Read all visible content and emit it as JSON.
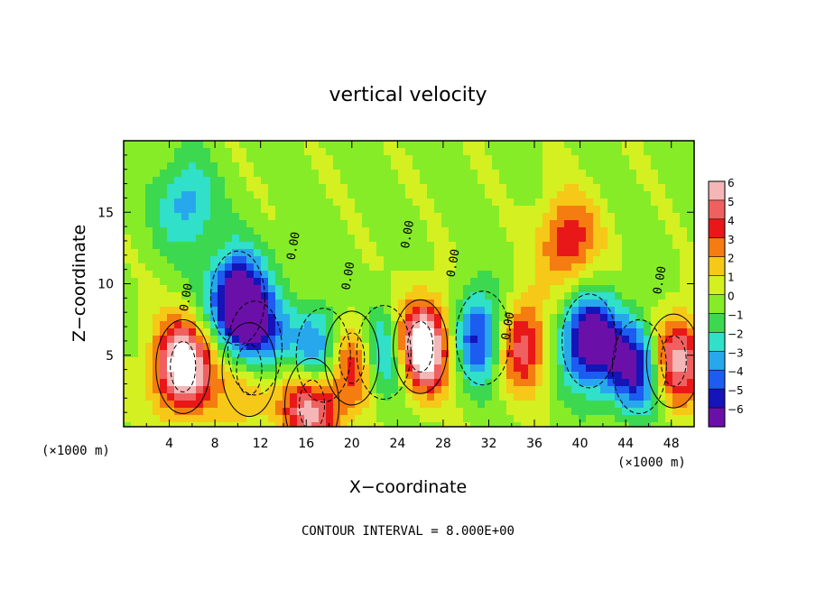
{
  "chart_data": {
    "type": "heatmap",
    "title": "vertical velocity",
    "xlabel": "X−coordinate",
    "ylabel": "Z−coordinate",
    "x_unit_left": "(×1000 m)",
    "x_unit_right": "(×1000 m)",
    "xlim": [
      0,
      50
    ],
    "ylim": [
      0,
      20
    ],
    "x_ticks": [
      4,
      8,
      12,
      16,
      20,
      24,
      28,
      32,
      36,
      40,
      44,
      48
    ],
    "y_ticks": [
      5,
      10,
      15
    ],
    "colorbar": {
      "ticks": [
        6,
        5,
        4,
        3,
        2,
        1,
        0,
        -1,
        -2,
        -3,
        -4,
        -5,
        -6
      ],
      "tick_labels": [
        "6",
        "5",
        "4",
        "3",
        "2",
        "1",
        "0",
        "−1",
        "−2",
        "−3",
        "−4",
        "−5",
        "−6"
      ],
      "colors": [
        "#f4b6b6",
        "#f06060",
        "#e81818",
        "#f57c10",
        "#f6c818",
        "#d4f020",
        "#86ec28",
        "#3cd850",
        "#30e0c8",
        "#28a8ec",
        "#1c5cf0",
        "#1414b8",
        "#6a10a8"
      ]
    },
    "contour_labels": [
      "0.00",
      "0.00",
      "0.00",
      "0.00",
      "0.00",
      "0.00",
      "0.00"
    ],
    "features": [
      {
        "x": 5.2,
        "z": 4.2,
        "w": 4.8
      },
      {
        "x": 11.0,
        "z": 4.0,
        "w": 4.2
      },
      {
        "x": 20.0,
        "z": 4.8,
        "w": 4.5
      },
      {
        "x": 26.0,
        "z": 5.6,
        "w": 5.8
      },
      {
        "x": 34.5,
        "z": 5.8,
        "w": 3.8
      },
      {
        "x": 48.2,
        "z": 4.6,
        "w": 4.4
      },
      {
        "x": 10.0,
        "z": 9.0,
        "w": -4.6
      },
      {
        "x": 11.5,
        "z": 5.5,
        "w": -5.4
      },
      {
        "x": 17.5,
        "z": 5.0,
        "w": -4.2
      },
      {
        "x": 22.8,
        "z": 5.2,
        "w": -4.0
      },
      {
        "x": 31.5,
        "z": 6.2,
        "w": -4.0
      },
      {
        "x": 40.8,
        "z": 6.0,
        "w": -4.6
      },
      {
        "x": 45.2,
        "z": 4.2,
        "w": -4.4
      },
      {
        "x": 5.5,
        "z": 15.5,
        "w": -2.1
      },
      {
        "x": 39.0,
        "z": 13.0,
        "w": 2.6
      },
      {
        "x": 16.5,
        "z": 1.5,
        "w": 4.2
      }
    ]
  },
  "footer": {
    "contour_interval": "CONTOUR INTERVAL = 8.000E+00"
  }
}
